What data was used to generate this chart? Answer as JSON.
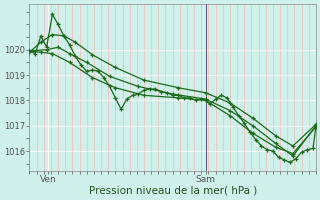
{
  "xlabel": "Pression niveau de la mer( hPa )",
  "bg_color": "#cff0eb",
  "plot_bg_color": "#cff0eb",
  "grid_major_color": "#ffffff",
  "grid_minor_color": "#ffaaaa",
  "line_color": "#1a6b1a",
  "marker_color": "#1a6b1a",
  "vline_color": "#555577",
  "xtick_labels": [
    "Ven",
    "Sam"
  ],
  "xtick_pos": [
    0.065,
    0.615
  ],
  "vline_x": 0.615,
  "ytick_vals": [
    1016,
    1017,
    1018,
    1019,
    1020
  ],
  "ylim": [
    1015.2,
    1021.8
  ],
  "xlim": [
    0.0,
    1.0
  ],
  "series1": [
    [
      0.0,
      1019.95
    ],
    [
      0.02,
      1019.85
    ],
    [
      0.04,
      1020.55
    ],
    [
      0.06,
      1020.1
    ],
    [
      0.08,
      1021.4
    ],
    [
      0.1,
      1021.0
    ],
    [
      0.12,
      1020.55
    ],
    [
      0.14,
      1020.2
    ],
    [
      0.16,
      1019.75
    ],
    [
      0.18,
      1019.4
    ],
    [
      0.2,
      1019.15
    ],
    [
      0.22,
      1019.2
    ],
    [
      0.24,
      1019.15
    ],
    [
      0.26,
      1018.9
    ],
    [
      0.28,
      1018.55
    ],
    [
      0.3,
      1018.1
    ],
    [
      0.32,
      1017.65
    ],
    [
      0.34,
      1018.05
    ],
    [
      0.36,
      1018.2
    ],
    [
      0.38,
      1018.25
    ],
    [
      0.4,
      1018.4
    ],
    [
      0.42,
      1018.45
    ],
    [
      0.44,
      1018.45
    ],
    [
      0.46,
      1018.35
    ],
    [
      0.48,
      1018.3
    ],
    [
      0.5,
      1018.2
    ],
    [
      0.52,
      1018.2
    ],
    [
      0.54,
      1018.1
    ],
    [
      0.56,
      1018.1
    ],
    [
      0.58,
      1018.0
    ],
    [
      0.6,
      1018.05
    ],
    [
      0.615,
      1018.0
    ],
    [
      0.63,
      1017.85
    ],
    [
      0.65,
      1018.05
    ],
    [
      0.67,
      1018.2
    ],
    [
      0.69,
      1018.1
    ],
    [
      0.71,
      1017.75
    ],
    [
      0.73,
      1017.4
    ],
    [
      0.75,
      1017.1
    ],
    [
      0.77,
      1016.75
    ],
    [
      0.79,
      1016.45
    ],
    [
      0.81,
      1016.2
    ],
    [
      0.83,
      1016.05
    ],
    [
      0.85,
      1016.0
    ],
    [
      0.87,
      1015.75
    ],
    [
      0.89,
      1015.65
    ],
    [
      0.91,
      1015.55
    ],
    [
      0.93,
      1015.7
    ],
    [
      0.95,
      1015.95
    ],
    [
      0.97,
      1016.05
    ],
    [
      0.99,
      1016.1
    ],
    [
      1.0,
      1016.95
    ]
  ],
  "series2": [
    [
      0.0,
      1019.95
    ],
    [
      0.04,
      1019.9
    ],
    [
      0.08,
      1019.85
    ],
    [
      0.14,
      1019.5
    ],
    [
      0.22,
      1018.9
    ],
    [
      0.3,
      1018.5
    ],
    [
      0.4,
      1018.2
    ],
    [
      0.52,
      1018.1
    ],
    [
      0.615,
      1018.0
    ],
    [
      0.7,
      1017.4
    ],
    [
      0.78,
      1016.7
    ],
    [
      0.86,
      1016.15
    ],
    [
      0.92,
      1015.9
    ],
    [
      1.0,
      1016.95
    ]
  ],
  "series3": [
    [
      0.0,
      1019.9
    ],
    [
      0.04,
      1020.3
    ],
    [
      0.08,
      1020.6
    ],
    [
      0.12,
      1020.55
    ],
    [
      0.16,
      1020.3
    ],
    [
      0.22,
      1019.8
    ],
    [
      0.3,
      1019.3
    ],
    [
      0.4,
      1018.8
    ],
    [
      0.52,
      1018.5
    ],
    [
      0.615,
      1018.3
    ],
    [
      0.7,
      1017.9
    ],
    [
      0.78,
      1017.3
    ],
    [
      0.86,
      1016.6
    ],
    [
      0.92,
      1016.2
    ],
    [
      1.0,
      1017.05
    ]
  ],
  "series4": [
    [
      0.0,
      1019.95
    ],
    [
      0.06,
      1020.0
    ],
    [
      0.1,
      1020.1
    ],
    [
      0.14,
      1019.85
    ],
    [
      0.2,
      1019.5
    ],
    [
      0.28,
      1018.95
    ],
    [
      0.38,
      1018.55
    ],
    [
      0.5,
      1018.25
    ],
    [
      0.615,
      1018.05
    ],
    [
      0.7,
      1017.6
    ],
    [
      0.78,
      1017.0
    ],
    [
      0.86,
      1016.3
    ],
    [
      0.92,
      1015.8
    ],
    [
      1.0,
      1017.0
    ]
  ]
}
